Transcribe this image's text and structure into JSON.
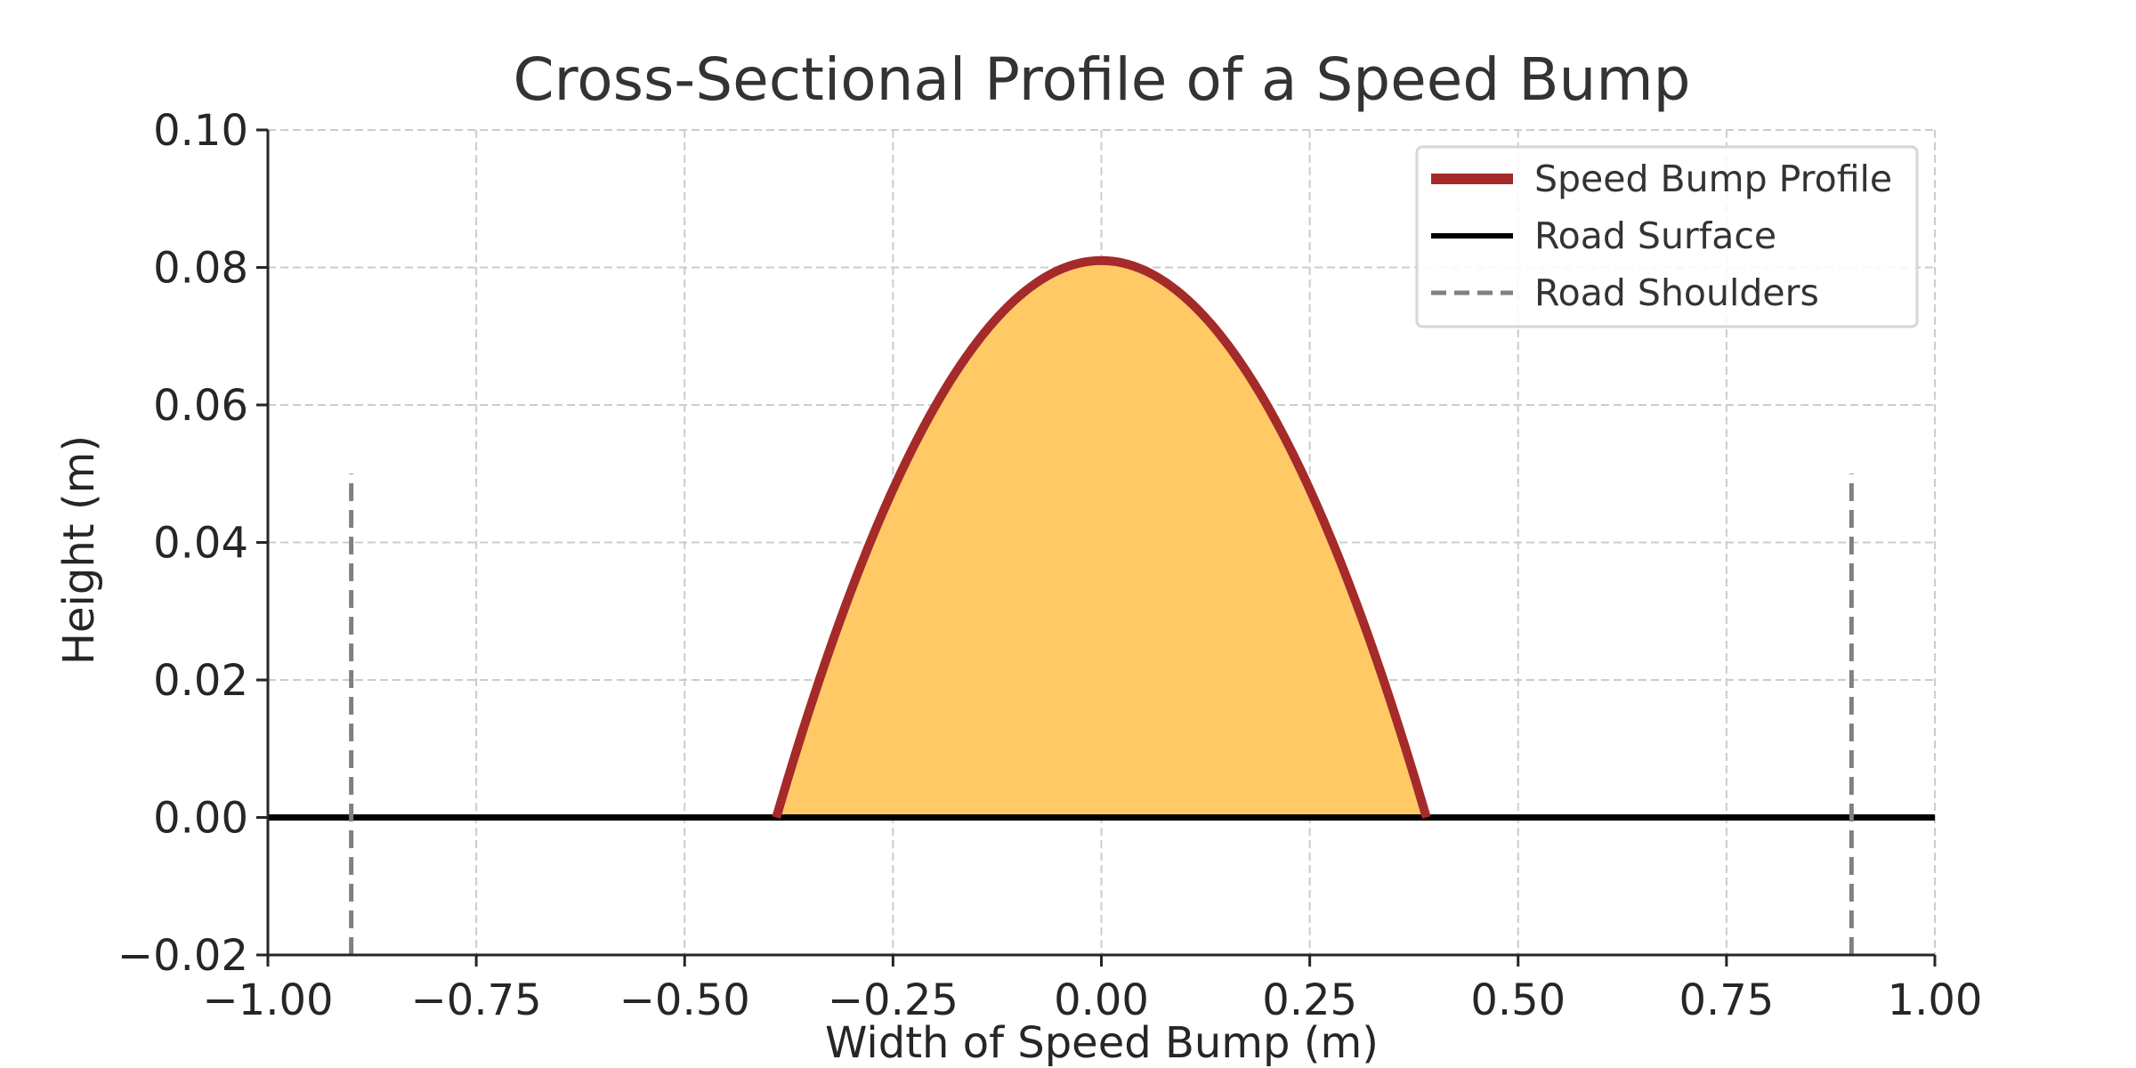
{
  "chart_data": {
    "type": "area",
    "title": "Cross-Sectional Profile of a Speed Bump",
    "xlabel": "Width of Speed Bump (m)",
    "ylabel": "Height (m)",
    "xlim": [
      -1.0,
      1.0
    ],
    "ylim": [
      -0.02,
      0.1
    ],
    "xticks": [
      -1.0,
      -0.75,
      -0.5,
      -0.25,
      0.0,
      0.25,
      0.5,
      0.75,
      1.0
    ],
    "xtick_labels": [
      "−1.00",
      "−0.75",
      "−0.50",
      "−0.25",
      "0.00",
      "0.25",
      "0.50",
      "0.75",
      "1.00"
    ],
    "yticks": [
      -0.02,
      0.0,
      0.02,
      0.04,
      0.06,
      0.08,
      0.1
    ],
    "ytick_labels": [
      "−0.02",
      "0.00",
      "0.02",
      "0.04",
      "0.06",
      "0.08",
      "0.10"
    ],
    "grid": true,
    "legend_position": "top-right",
    "series": [
      {
        "name": "Speed Bump Profile",
        "kind": "parabola",
        "color": "#A52A2A",
        "fill_color": "#FFC966",
        "x_range": [
          -0.39,
          0.39
        ],
        "peak_x": 0.0,
        "peak_height": 0.081
      },
      {
        "name": "Road Surface",
        "kind": "hline",
        "color": "#000000",
        "y": 0.0
      },
      {
        "name": "Road Shoulders",
        "kind": "vlines",
        "color": "#808080",
        "style": "dashed",
        "x": [
          -0.9,
          0.9
        ],
        "y_range": [
          -0.02,
          0.05
        ]
      }
    ]
  }
}
